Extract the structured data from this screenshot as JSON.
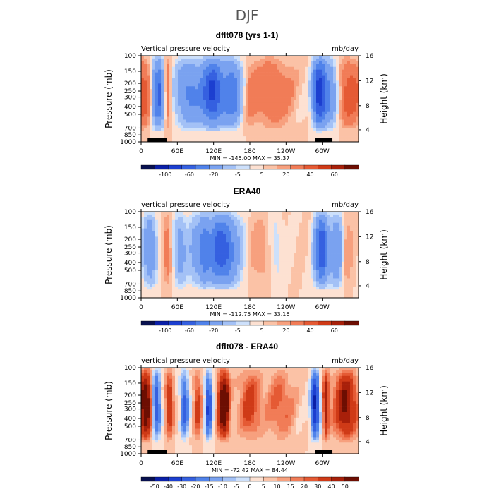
{
  "figure_title": "DJF",
  "chart_data": [
    {
      "type": "heatmap",
      "title": "dflt078 (yrs 1-1)",
      "left_label": "Vertical pressure velocity",
      "right_label": "mb/day",
      "ylabel": "Pressure (mb)",
      "ylabel_right": "Height (km)",
      "x_tick_labels": [
        "0",
        "60E",
        "120E",
        "180",
        "120W",
        "60W"
      ],
      "y_tick_labels": [
        "100",
        "150",
        "200",
        "250",
        "300",
        "400",
        "500",
        "700",
        "850",
        "1000"
      ],
      "y2_tick_labels": [
        "16",
        "12",
        "8",
        "4"
      ],
      "stats_label": "MIN = -145.00   MAX =  35.37",
      "colorbar_levels": [
        "-100",
        "-60",
        "-20",
        "-5",
        "5",
        "20",
        "40",
        "60"
      ],
      "colorbar_colors": [
        "#08104f",
        "#0a1fa8",
        "#1c3fd0",
        "#3560e0",
        "#5082ea",
        "#7aa2f0",
        "#a3c1f6",
        "#cde0fb",
        "#fde1d2",
        "#fbc2a6",
        "#f7a07e",
        "#f17c57",
        "#e55a34",
        "#cf3a17",
        "#a8200a",
        "#6d0e02"
      ]
    },
    {
      "type": "heatmap",
      "title": "ERA40",
      "left_label": "vertical pressure velocity",
      "right_label": "mb/day",
      "ylabel": "Pressure (mb)",
      "ylabel_right": "Height (km)",
      "x_tick_labels": [
        "0",
        "60E",
        "120E",
        "180",
        "120W",
        "60W"
      ],
      "y_tick_labels": [
        "100",
        "150",
        "200",
        "250",
        "300",
        "400",
        "500",
        "700",
        "850",
        "1000"
      ],
      "y2_tick_labels": [
        "16",
        "12",
        "8",
        "4"
      ],
      "stats_label": "MIN = -112.75   MAX =  33.16",
      "colorbar_levels": [
        "-100",
        "-60",
        "-20",
        "-5",
        "5",
        "20",
        "40",
        "60"
      ],
      "colorbar_colors": [
        "#08104f",
        "#0a1fa8",
        "#1c3fd0",
        "#3560e0",
        "#5082ea",
        "#7aa2f0",
        "#a3c1f6",
        "#cde0fb",
        "#fde1d2",
        "#fbc2a6",
        "#f7a07e",
        "#f17c57",
        "#e55a34",
        "#cf3a17",
        "#a8200a",
        "#6d0e02"
      ]
    },
    {
      "type": "heatmap",
      "title": "dflt078 - ERA40",
      "left_label": "vertical pressure velocity",
      "right_label": "mb/day",
      "ylabel": "Pressure (mb)",
      "ylabel_right": "Height (km)",
      "x_tick_labels": [
        "0",
        "60E",
        "120E",
        "180",
        "120W",
        "60W"
      ],
      "y_tick_labels": [
        "100",
        "150",
        "200",
        "250",
        "300",
        "400",
        "500",
        "700",
        "850",
        "1000"
      ],
      "y2_tick_labels": [
        "16",
        "12",
        "8",
        "4"
      ],
      "stats_label": "MIN = -72.42   MAX =  84.44",
      "colorbar_levels": [
        "-50",
        "-40",
        "-30",
        "-20",
        "-15",
        "-10",
        "-5",
        "0",
        "5",
        "10",
        "15",
        "20",
        "30",
        "40",
        "50"
      ],
      "colorbar_colors": [
        "#08104f",
        "#0a1fa8",
        "#1c3fd0",
        "#3560e0",
        "#5082ea",
        "#7aa2f0",
        "#a3c1f6",
        "#cde0fb",
        "#fde1d2",
        "#fbc2a6",
        "#f7a07e",
        "#f17c57",
        "#e55a34",
        "#cf3a17",
        "#a8200a",
        "#6d0e02"
      ]
    }
  ]
}
